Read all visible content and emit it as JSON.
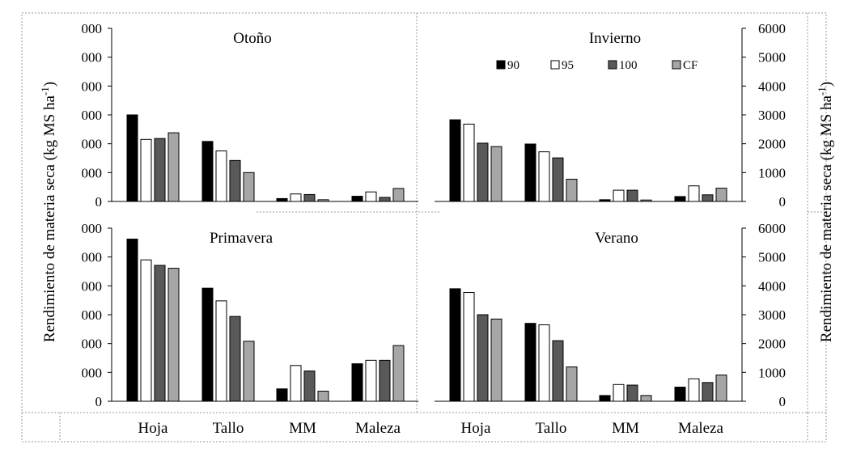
{
  "chart_data": {
    "type": "bar",
    "ylabel_left": "Rendimiento de materia seca (kg MS ha",
    "ylabel_right": "Rendimiento de materia seca (kg MS ha",
    "ylabel_sup": "-1",
    "ylabel_close": ")",
    "categories": [
      "Hoja",
      "Tallo",
      "MM",
      "Maleza"
    ],
    "ylim": [
      0,
      6000
    ],
    "yticks": [
      0,
      1000,
      2000,
      3000,
      4000,
      5000,
      6000
    ],
    "ytick_labels_left": [
      "0",
      "000",
      "000",
      "000",
      "000",
      "000",
      "000"
    ],
    "ytick_labels_right": [
      "0",
      "1000",
      "2000",
      "3000",
      "4000",
      "5000",
      "6000"
    ],
    "legend": {
      "placement": "top-right (Invierno panel)",
      "entries": [
        {
          "label": "90",
          "color": "#000000"
        },
        {
          "label": "95",
          "color": "#ffffff"
        },
        {
          "label": "100",
          "color": "#595959"
        },
        {
          "label": "CF",
          "color": "#a6a6a6"
        }
      ]
    },
    "panels": [
      {
        "title": "Otoño",
        "series": [
          {
            "name": "90",
            "values": [
              3000,
              2080,
              100,
              180
            ]
          },
          {
            "name": "95",
            "values": [
              2150,
              1750,
              260,
              330
            ]
          },
          {
            "name": "100",
            "values": [
              2180,
              1420,
              240,
              140
            ]
          },
          {
            "name": "CF",
            "values": [
              2380,
              1000,
              60,
              450
            ]
          }
        ]
      },
      {
        "title": "Invierno",
        "series": [
          {
            "name": "90",
            "values": [
              2830,
              1990,
              60,
              170
            ]
          },
          {
            "name": "95",
            "values": [
              2680,
              1720,
              390,
              540
            ]
          },
          {
            "name": "100",
            "values": [
              2020,
              1510,
              390,
              230
            ]
          },
          {
            "name": "CF",
            "values": [
              1900,
              770,
              50,
              460
            ]
          }
        ]
      },
      {
        "title": "Primavera",
        "series": [
          {
            "name": "90",
            "values": [
              5620,
              3920,
              430,
              1300
            ]
          },
          {
            "name": "95",
            "values": [
              4900,
              3480,
              1240,
              1420
            ]
          },
          {
            "name": "100",
            "values": [
              4710,
              2940,
              1050,
              1420
            ]
          },
          {
            "name": "CF",
            "values": [
              4610,
              2080,
              350,
              1930
            ]
          }
        ]
      },
      {
        "title": "Verano",
        "series": [
          {
            "name": "90",
            "values": [
              3900,
              2700,
              200,
              490
            ]
          },
          {
            "name": "95",
            "values": [
              3770,
              2650,
              580,
              780
            ]
          },
          {
            "name": "100",
            "values": [
              3000,
              2100,
              560,
              650
            ]
          },
          {
            "name": "CF",
            "values": [
              2850,
              1190,
              200,
              910
            ]
          }
        ]
      }
    ]
  }
}
